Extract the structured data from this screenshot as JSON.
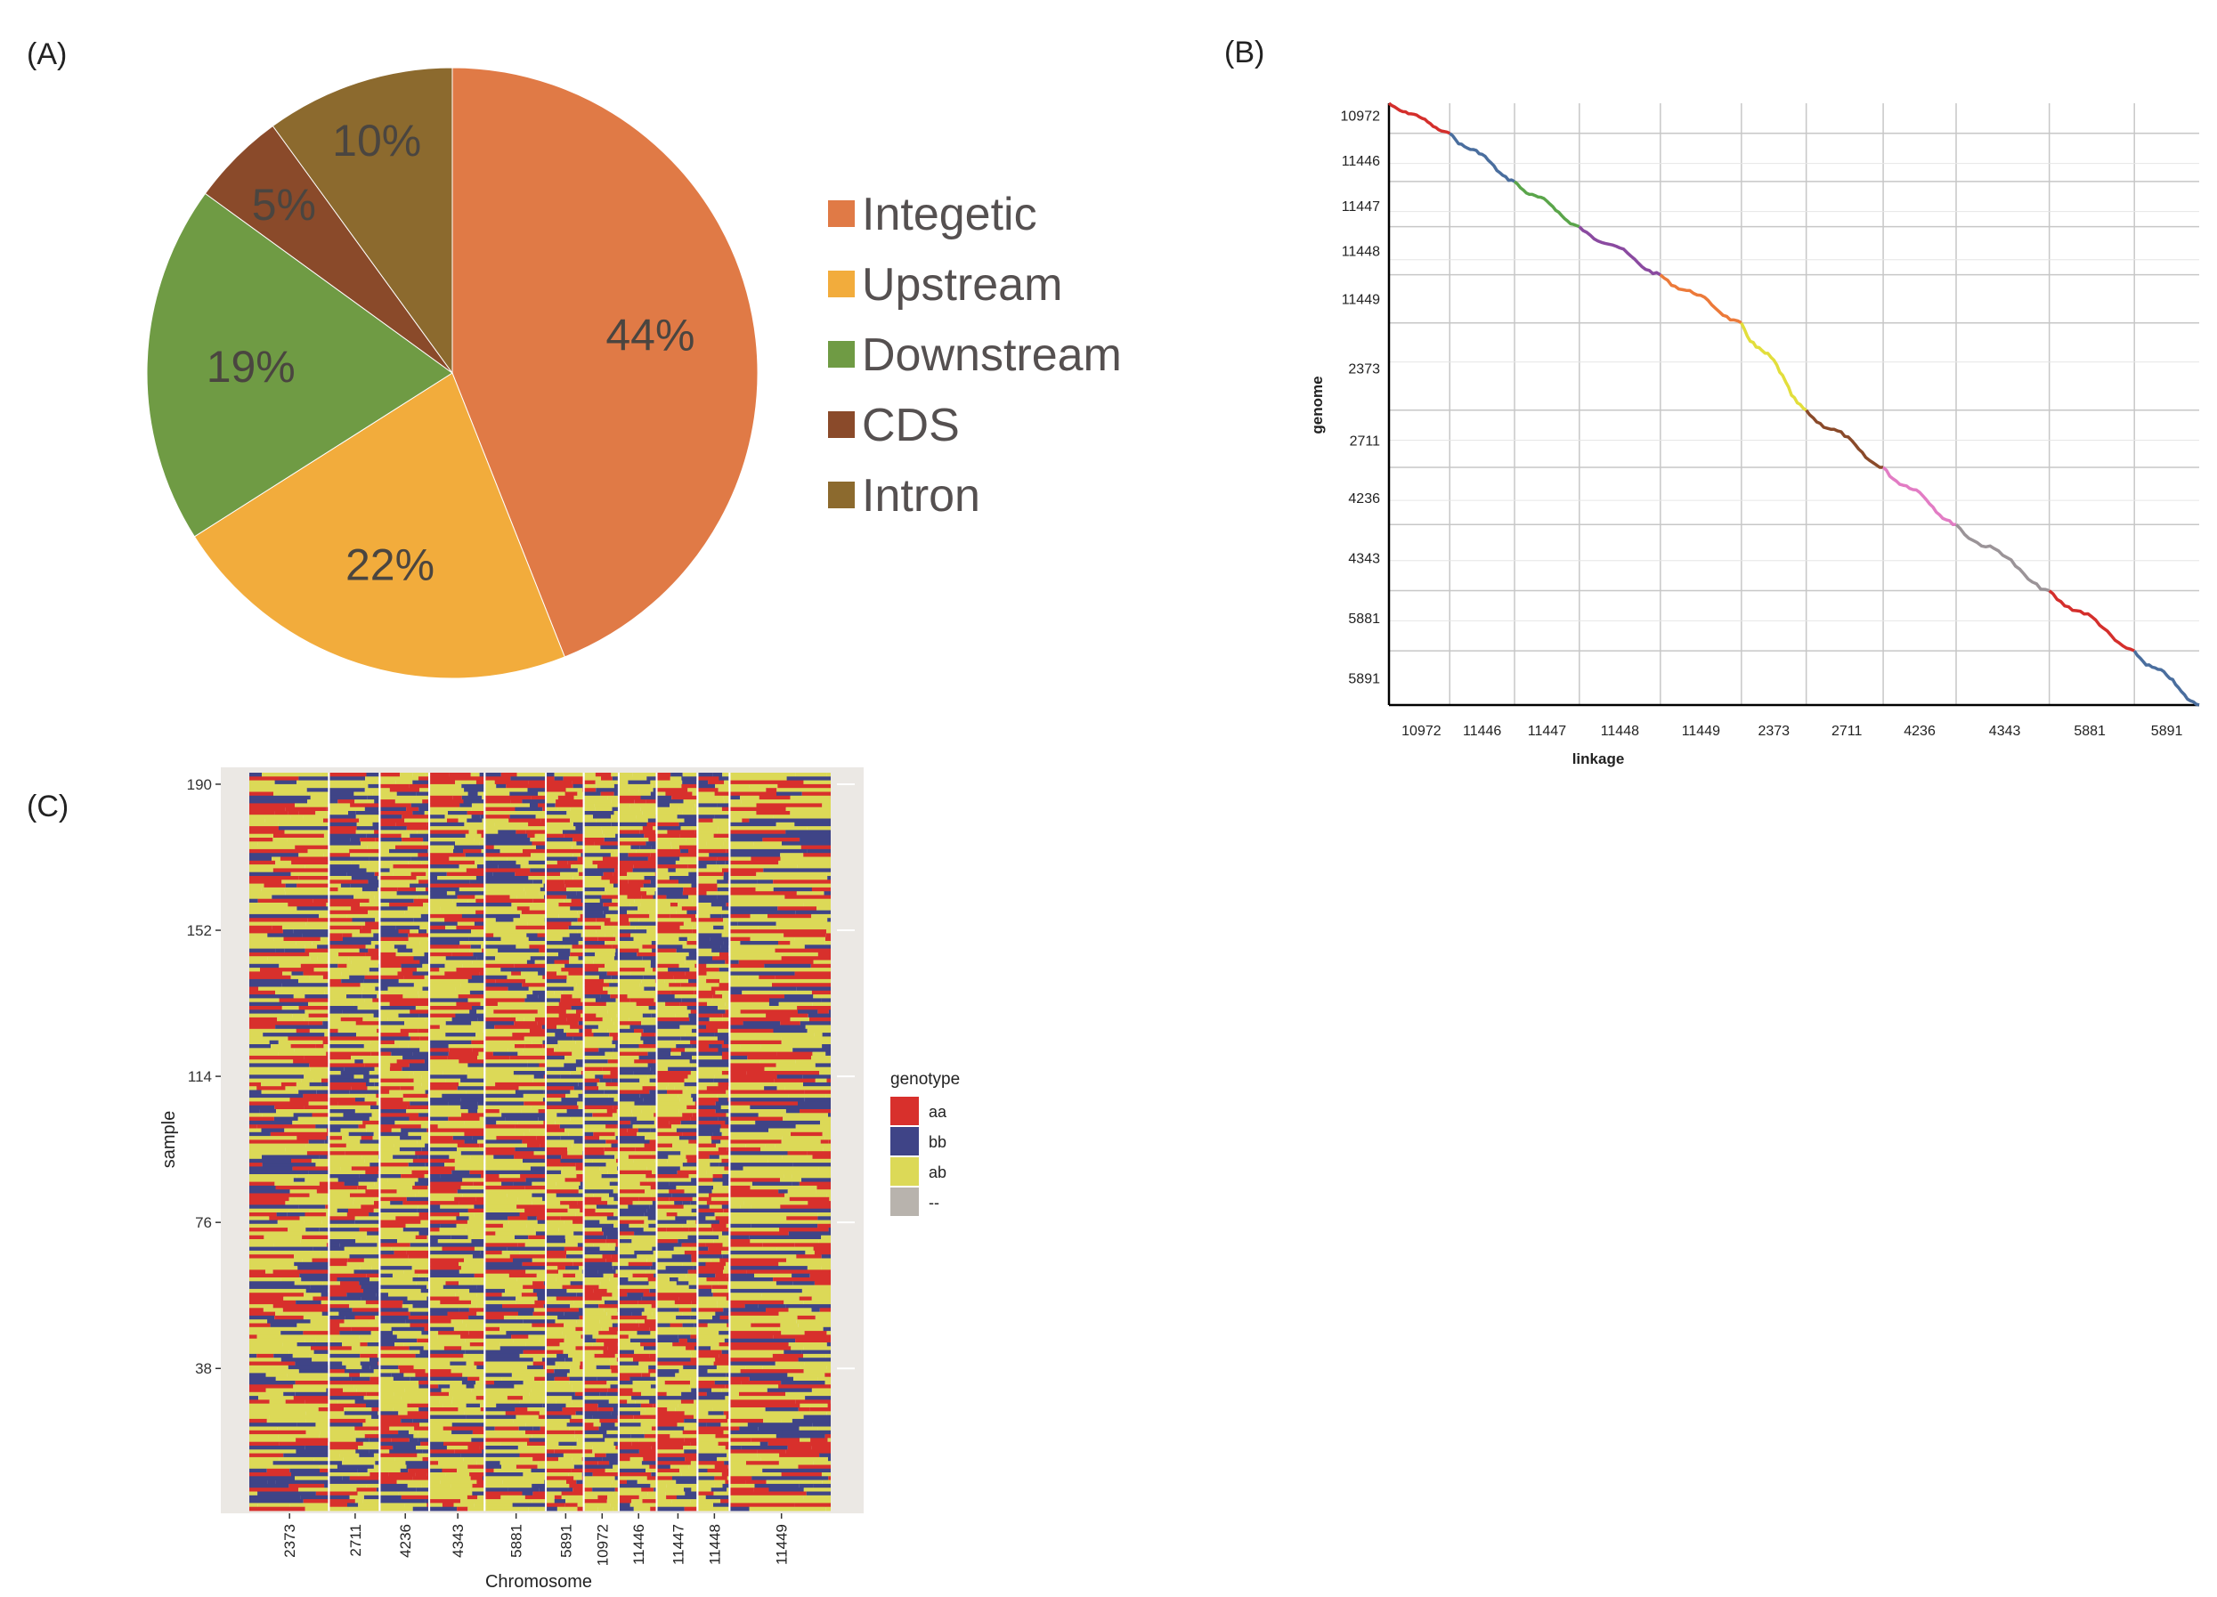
{
  "panels": {
    "a": "(A)",
    "b": "(B)",
    "c": "(C)"
  },
  "colors": {
    "integetic": "#e07a46",
    "upstream": "#f2ac3c",
    "downstream": "#6f9b44",
    "cds": "#8a4a2a",
    "intron": "#8c6a2e",
    "aa": "#d8302c",
    "bb": "#3f4487",
    "ab": "#dcd957",
    "missing": "#b8b3ad",
    "panel_bg": "#ebe8e4",
    "pie_text": "#4a4540",
    "legend_text": "#555050"
  },
  "chart_data": [
    {
      "type": "pie",
      "categories": [
        "Integetic",
        "Upstream",
        "Downstream",
        "CDS",
        "Intron"
      ],
      "values": [
        44,
        22,
        19,
        5,
        10
      ],
      "labels": [
        "44%",
        "22%",
        "19%",
        "5%",
        "10%"
      ],
      "start": "12 o'clock",
      "direction": "clockwise",
      "legend": "right"
    },
    {
      "type": "line",
      "xlabel": "linkage",
      "ylabel": "genome",
      "categories": [
        "10972",
        "11446",
        "11447",
        "11448",
        "11449",
        "2373",
        "2711",
        "4236",
        "4343",
        "5881",
        "5891"
      ],
      "y_categories": [
        "10972",
        "11446",
        "11447",
        "11448",
        "11449",
        "2373",
        "2711",
        "4236",
        "4343",
        "5881",
        "5891"
      ],
      "segment_colors": [
        "#d42f2c",
        "#4a6e9e",
        "#5aa54a",
        "#8a4aa0",
        "#ec7a3a",
        "#e2de3c",
        "#8a4a2a",
        "#e27cc4",
        "#9b9498",
        "#d42f2c",
        "#4a6e9e"
      ],
      "grid": true
    },
    {
      "type": "heatmap",
      "xlabel": "Chromosome",
      "ylabel": "sample",
      "x_categories": [
        "2373",
        "2711",
        "4236",
        "4343",
        "5881",
        "5891",
        "10972",
        "11446",
        "11447",
        "11448",
        "11449"
      ],
      "y_ticks": [
        38,
        76,
        114,
        152,
        190
      ],
      "y_range": [
        1,
        193
      ],
      "legend_title": "genotype",
      "legend_entries": [
        "aa",
        "bb",
        "ab",
        "--"
      ],
      "legend": "right"
    }
  ]
}
